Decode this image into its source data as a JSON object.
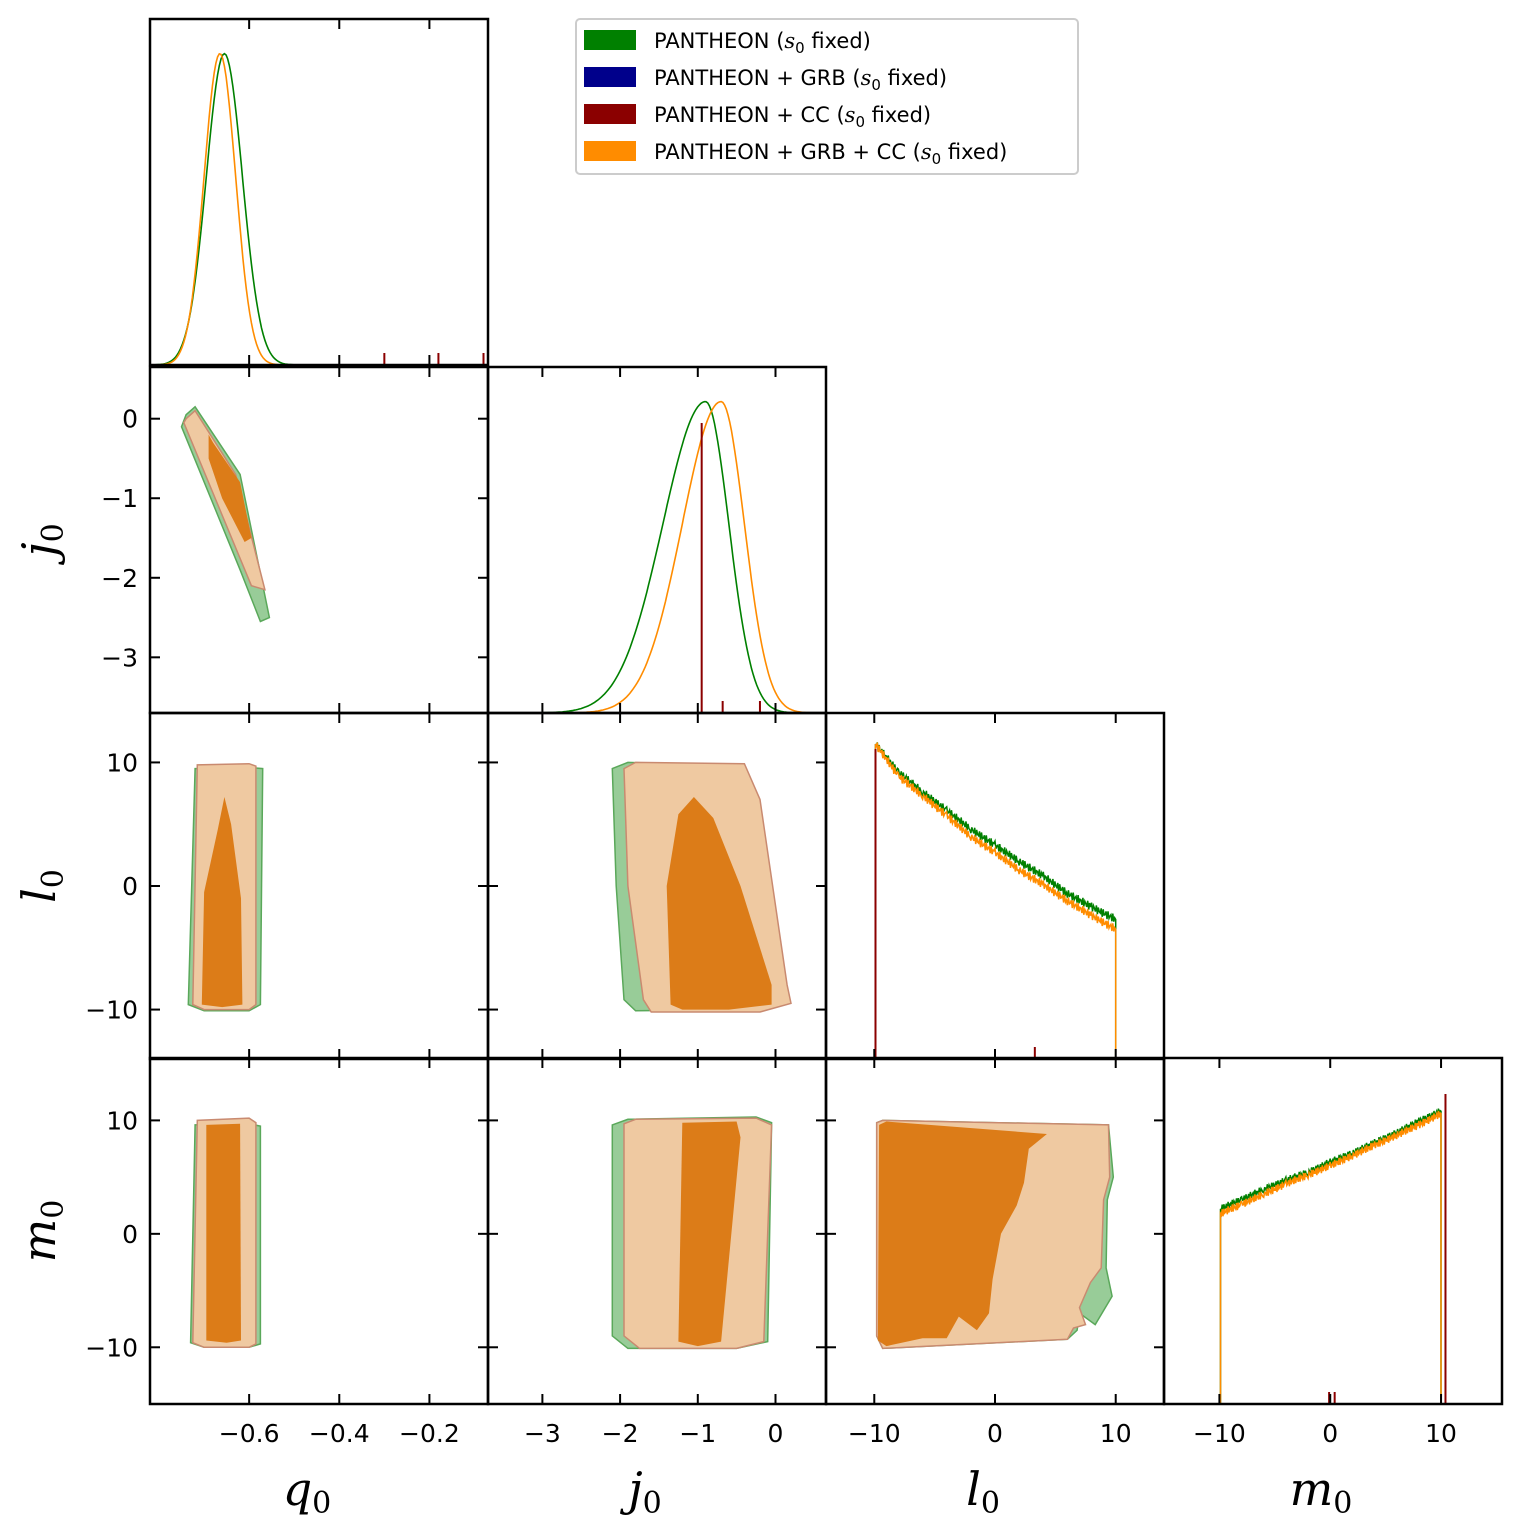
{
  "chart_data": {
    "type": "triangle",
    "title": "",
    "parameters": [
      {
        "key": "q0",
        "symbol": "q",
        "subscript": "0",
        "range": [
          -0.82,
          -0.07
        ],
        "ticks": [
          -0.6,
          -0.4,
          -0.2
        ],
        "tick_labels": [
          "−0.6",
          "−0.4",
          "−0.2"
        ]
      },
      {
        "key": "j0",
        "symbol": "j",
        "subscript": "0",
        "range": [
          -3.7,
          0.65
        ],
        "ticks": [
          -3,
          -2,
          -1,
          0
        ],
        "tick_labels": [
          "−3",
          "−2",
          "−1",
          "0"
        ]
      },
      {
        "key": "l0",
        "symbol": "l",
        "subscript": "0",
        "range": [
          -14,
          14
        ],
        "ticks": [
          -10,
          0,
          10
        ],
        "tick_labels": [
          "−10",
          "0",
          "10"
        ]
      },
      {
        "key": "m0",
        "symbol": "m",
        "subscript": "0",
        "range": [
          -15,
          15.5
        ],
        "ticks": [
          -10,
          0,
          10
        ],
        "tick_labels": [
          "−10",
          "0",
          "10"
        ]
      }
    ],
    "legend": {
      "position": "top-center",
      "entries": [
        {
          "label_pre": "PANTHEON (",
          "label_sym": "s",
          "label_sub": "0",
          "label_post": " fixed)",
          "color": "#008000"
        },
        {
          "label_pre": "PANTHEON + GRB (",
          "label_sym": "s",
          "label_sub": "0",
          "label_post": " fixed)",
          "color": "#00008b"
        },
        {
          "label_pre": "PANTHEON + CC (",
          "label_sym": "s",
          "label_sub": "0",
          "label_post": " fixed)",
          "color": "#8b0000"
        },
        {
          "label_pre": "PANTHEON + GRB + CC (",
          "label_sym": "s",
          "label_sub": "0",
          "label_post": " fixed)",
          "color": "#ff8c00"
        }
      ]
    },
    "series": [
      {
        "name": "PANTHEON (s0 fixed)",
        "color": "#008000",
        "marginals": {
          "q0": {
            "mean": -0.655,
            "sigma": 0.04
          },
          "j0": {
            "mode": -0.9,
            "sigma_left": 0.55,
            "sigma_right": 0.3
          },
          "l0": {
            "points": [
              [
                -9.9,
                11.5
              ],
              [
                -8,
                9.2
              ],
              [
                -6,
                7.6
              ],
              [
                -4,
                6.1
              ],
              [
                -2,
                4.6
              ],
              [
                0,
                3.3
              ],
              [
                2,
                2.0
              ],
              [
                4,
                0.8
              ],
              [
                6,
                -0.6
              ],
              [
                8,
                -1.7
              ],
              [
                10,
                -2.7
              ]
            ]
          },
          "m0": {
            "points": [
              [
                -9.9,
                2.2
              ],
              [
                -8,
                3.0
              ],
              [
                -6,
                3.9
              ],
              [
                -4,
                4.7
              ],
              [
                -2,
                5.4
              ],
              [
                0,
                6.3
              ],
              [
                2,
                7.1
              ],
              [
                4,
                8.0
              ],
              [
                6,
                8.9
              ],
              [
                8,
                9.9
              ],
              [
                10,
                10.8
              ]
            ]
          }
        }
      },
      {
        "name": "PANTHEON + GRB (s0 fixed)",
        "color": "#00008b",
        "marginals": {}
      },
      {
        "name": "PANTHEON + CC (s0 fixed)",
        "color": "#8b0000",
        "spikes": {
          "q0": [
            -0.3,
            -0.18,
            -0.08
          ],
          "j0": [
            -0.95,
            -0.68,
            -0.2
          ],
          "l0": [
            -9.9,
            3.3
          ],
          "m0": [
            -0.1,
            0.4,
            10.4
          ]
        }
      },
      {
        "name": "PANTHEON + GRB + CC (s0 fixed)",
        "color": "#ff8c00",
        "marginals": {
          "q0": {
            "mean": -0.665,
            "sigma": 0.035
          },
          "j0": {
            "mode": -0.7,
            "sigma_left": 0.5,
            "sigma_right": 0.3
          },
          "l0": {
            "points": [
              [
                -9.9,
                11.5
              ],
              [
                -8,
                8.9
              ],
              [
                -6,
                7.3
              ],
              [
                -4,
                5.7
              ],
              [
                -2,
                4.0
              ],
              [
                0,
                2.7
              ],
              [
                2,
                1.3
              ],
              [
                4,
                0.1
              ],
              [
                6,
                -1.2
              ],
              [
                8,
                -2.4
              ],
              [
                10,
                -3.5
              ]
            ]
          },
          "m0": {
            "points": [
              [
                -9.9,
                1.8
              ],
              [
                -8,
                2.6
              ],
              [
                -6,
                3.5
              ],
              [
                -4,
                4.4
              ],
              [
                -2,
                5.2
              ],
              [
                0,
                6.0
              ],
              [
                2,
                6.9
              ],
              [
                4,
                7.8
              ],
              [
                6,
                8.7
              ],
              [
                8,
                9.6
              ],
              [
                10,
                10.6
              ]
            ]
          }
        }
      }
    ],
    "contours": [
      {
        "x": "q0",
        "y": "j0",
        "outer_green": [
          [
            -0.74,
            0.05
          ],
          [
            -0.72,
            0.15
          ],
          [
            -0.62,
            -0.7
          ],
          [
            -0.555,
            -2.5
          ],
          [
            -0.575,
            -2.55
          ],
          [
            -0.62,
            -1.9
          ],
          [
            -0.75,
            -0.1
          ]
        ],
        "outer_orange": [
          [
            -0.74,
            0.0
          ],
          [
            -0.72,
            0.1
          ],
          [
            -0.63,
            -0.7
          ],
          [
            -0.565,
            -2.15
          ],
          [
            -0.595,
            -2.1
          ],
          [
            -0.745,
            -0.05
          ]
        ],
        "inner": [
          [
            -0.69,
            -0.2
          ],
          [
            -0.68,
            -0.3
          ],
          [
            -0.62,
            -0.8
          ],
          [
            -0.595,
            -1.5
          ],
          [
            -0.61,
            -1.55
          ],
          [
            -0.66,
            -1.0
          ],
          [
            -0.69,
            -0.5
          ]
        ]
      },
      {
        "x": "q0",
        "y": "l0",
        "outer_green": [
          [
            -0.735,
            -9.6
          ],
          [
            -0.72,
            9.5
          ],
          [
            -0.6,
            9.6
          ],
          [
            -0.57,
            9.5
          ],
          [
            -0.575,
            -9.6
          ],
          [
            -0.6,
            -10.1
          ],
          [
            -0.7,
            -10.1
          ]
        ],
        "outer_orange": [
          [
            -0.725,
            -9.6
          ],
          [
            -0.715,
            9.8
          ],
          [
            -0.6,
            9.9
          ],
          [
            -0.585,
            9.7
          ],
          [
            -0.585,
            -9.6
          ],
          [
            -0.6,
            -10.0
          ],
          [
            -0.7,
            -10.0
          ]
        ],
        "inner": [
          [
            -0.705,
            -9.6
          ],
          [
            -0.7,
            -0.5
          ],
          [
            -0.67,
            4.5
          ],
          [
            -0.655,
            7.2
          ],
          [
            -0.64,
            5.0
          ],
          [
            -0.618,
            -1.0
          ],
          [
            -0.615,
            -9.6
          ],
          [
            -0.66,
            -9.8
          ]
        ]
      },
      {
        "x": "q0",
        "y": "m0",
        "outer_green": [
          [
            -0.73,
            -9.6
          ],
          [
            -0.72,
            9.6
          ],
          [
            -0.6,
            9.7
          ],
          [
            -0.575,
            9.5
          ],
          [
            -0.575,
            -9.7
          ],
          [
            -0.6,
            -10.0
          ],
          [
            -0.7,
            -10.0
          ]
        ],
        "outer_orange": [
          [
            -0.725,
            -9.6
          ],
          [
            -0.715,
            10.0
          ],
          [
            -0.6,
            10.2
          ],
          [
            -0.585,
            9.8
          ],
          [
            -0.585,
            -9.7
          ],
          [
            -0.6,
            -10.0
          ],
          [
            -0.7,
            -10.0
          ]
        ],
        "inner": [
          [
            -0.695,
            -9.4
          ],
          [
            -0.695,
            9.6
          ],
          [
            -0.62,
            9.7
          ],
          [
            -0.618,
            -9.4
          ],
          [
            -0.65,
            -9.6
          ]
        ]
      },
      {
        "x": "j0",
        "y": "l0",
        "outer_green": [
          [
            -2.1,
            9.5
          ],
          [
            -1.9,
            10.0
          ],
          [
            -0.5,
            9.8
          ],
          [
            -0.25,
            6.5
          ],
          [
            0.0,
            -8.5
          ],
          [
            0.1,
            -9.5
          ],
          [
            -0.3,
            -10.0
          ],
          [
            -1.8,
            -10.1
          ],
          [
            -1.95,
            -9.2
          ],
          [
            -2.05,
            0.0
          ]
        ],
        "outer_orange": [
          [
            -1.95,
            9.5
          ],
          [
            -1.8,
            10.0
          ],
          [
            -0.4,
            9.9
          ],
          [
            -0.2,
            7.0
          ],
          [
            0.15,
            -8.0
          ],
          [
            0.2,
            -9.5
          ],
          [
            -0.2,
            -10.2
          ],
          [
            -1.6,
            -10.2
          ],
          [
            -1.7,
            -9.2
          ],
          [
            -1.9,
            0.0
          ]
        ],
        "inner": [
          [
            -1.35,
            -9.6
          ],
          [
            -1.4,
            0.0
          ],
          [
            -1.25,
            5.8
          ],
          [
            -1.05,
            7.2
          ],
          [
            -0.8,
            5.5
          ],
          [
            -0.45,
            0.0
          ],
          [
            -0.05,
            -8.0
          ],
          [
            -0.05,
            -9.6
          ],
          [
            -0.6,
            -10.0
          ],
          [
            -1.2,
            -10.0
          ]
        ]
      },
      {
        "x": "j0",
        "y": "m0",
        "outer_green": [
          [
            -2.1,
            9.6
          ],
          [
            -1.9,
            10.1
          ],
          [
            -0.25,
            10.3
          ],
          [
            -0.05,
            9.8
          ],
          [
            -0.1,
            -9.5
          ],
          [
            -0.5,
            -10.1
          ],
          [
            -1.9,
            -10.1
          ],
          [
            -2.1,
            -9.0
          ],
          [
            -2.1,
            0.0
          ]
        ],
        "outer_orange": [
          [
            -1.95,
            9.7
          ],
          [
            -1.8,
            10.1
          ],
          [
            -0.25,
            10.2
          ],
          [
            -0.05,
            9.6
          ],
          [
            -0.15,
            -9.5
          ],
          [
            -0.5,
            -10.1
          ],
          [
            -1.75,
            -10.1
          ],
          [
            -1.95,
            -9.0
          ],
          [
            -1.95,
            0.0
          ]
        ],
        "inner": [
          [
            -1.25,
            -9.5
          ],
          [
            -1.2,
            9.8
          ],
          [
            -0.5,
            9.9
          ],
          [
            -0.45,
            8.5
          ],
          [
            -0.7,
            -9.5
          ],
          [
            -1.0,
            -9.9
          ]
        ]
      },
      {
        "x": "l0",
        "y": "m0",
        "outer_green": [
          [
            -9.8,
            9.8
          ],
          [
            -9.3,
            10.0
          ],
          [
            9.4,
            9.6
          ],
          [
            9.8,
            5.0
          ],
          [
            9.3,
            3.0
          ],
          [
            9.2,
            -3.0
          ],
          [
            9.7,
            -5.5
          ],
          [
            8.3,
            -8.0
          ],
          [
            7.0,
            -7.0
          ],
          [
            6.8,
            -8.5
          ],
          [
            6.0,
            -9.3
          ],
          [
            -9.3,
            -10.1
          ],
          [
            -9.8,
            -9.0
          ]
        ],
        "outer_orange": [
          [
            -9.8,
            9.8
          ],
          [
            -9.3,
            10.0
          ],
          [
            9.4,
            9.6
          ],
          [
            9.5,
            5.0
          ],
          [
            9.0,
            3.0
          ],
          [
            8.8,
            -3.0
          ],
          [
            7.9,
            -4.3
          ],
          [
            7.0,
            -6.5
          ],
          [
            7.5,
            -8.0
          ],
          [
            6.5,
            -8.3
          ],
          [
            6.0,
            -9.3
          ],
          [
            -9.3,
            -10.1
          ],
          [
            -9.8,
            -9.0
          ]
        ],
        "inner": [
          [
            -9.7,
            -9.4
          ],
          [
            -9.6,
            9.6
          ],
          [
            -9.0,
            9.9
          ],
          [
            4.3,
            8.8
          ],
          [
            2.8,
            7.5
          ],
          [
            2.4,
            4.5
          ],
          [
            1.8,
            2.5
          ],
          [
            0.5,
            0.0
          ],
          [
            -0.2,
            -4.0
          ],
          [
            -0.5,
            -7.0
          ],
          [
            -1.5,
            -8.5
          ],
          [
            -3.0,
            -7.3
          ],
          [
            -4.0,
            -9.2
          ],
          [
            -6.0,
            -9.2
          ],
          [
            -9.0,
            -9.9
          ]
        ]
      }
    ]
  }
}
